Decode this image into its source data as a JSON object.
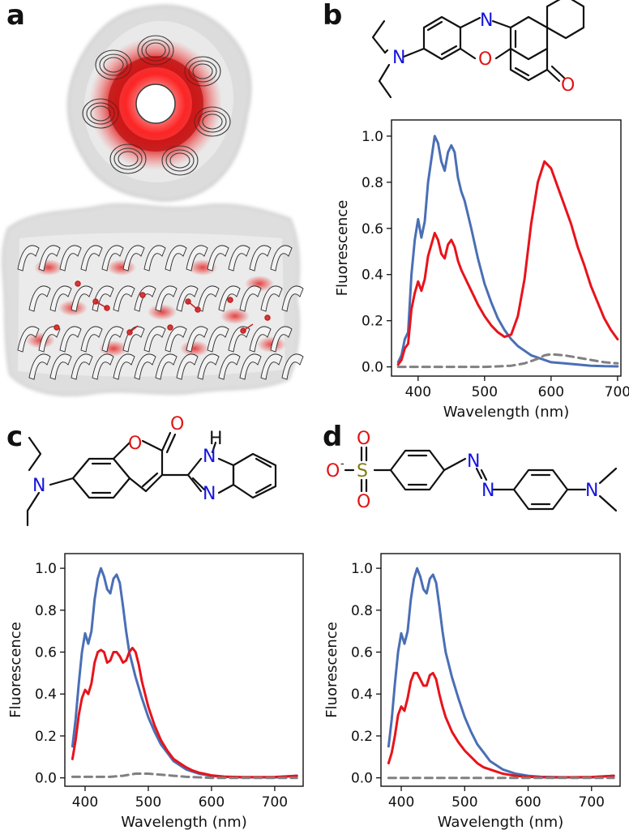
{
  "figure": {
    "panels": {
      "a": {
        "letter": "a"
      },
      "b": {
        "letter": "b"
      },
      "c": {
        "letter": "c"
      },
      "d": {
        "letter": "d"
      }
    },
    "molecule_b_atoms": {
      "N_ring": "N",
      "N_amine": "N",
      "O_ring": "O",
      "O_keto": "O"
    },
    "molecule_c_atoms": {
      "O_ring": "O",
      "O_keto": "O",
      "N_amine": "N",
      "NH": "N",
      "H": "H",
      "N_imid": "N"
    },
    "molecule_d_atoms": {
      "O_minus": "O",
      "minus": "-",
      "S": "S",
      "O_top": "O",
      "O_bottom": "O",
      "N1": "N",
      "N2": "N",
      "N_amine": "N"
    },
    "colors": {
      "blue": "#4a6fb5",
      "red": "#e8131b",
      "dashed": "#808080",
      "hetero_blue": "#1515e0",
      "hetero_red": "#e01515",
      "sulfur": "#7d7d12"
    }
  },
  "chart_data": [
    {
      "panel": "b",
      "type": "line",
      "xlabel": "Wavelength (nm)",
      "ylabel": "Fluorescence",
      "xlim": [
        360,
        705
      ],
      "ylim": [
        -0.04,
        1.07
      ],
      "xticks": [
        400,
        500,
        600,
        700
      ],
      "yticks": [
        0.0,
        0.2,
        0.4,
        0.6,
        0.8,
        1.0
      ],
      "xtick_labels": [
        "400",
        "500",
        "600",
        "700"
      ],
      "ytick_labels": [
        "0.0",
        "0.2",
        "0.4",
        "0.6",
        "0.8",
        "1.0"
      ],
      "series": [
        {
          "color": "blue",
          "style": "solid",
          "x": [
            370,
            375,
            380,
            385,
            390,
            395,
            400,
            405,
            410,
            415,
            420,
            425,
            430,
            435,
            440,
            445,
            450,
            455,
            460,
            465,
            470,
            480,
            490,
            500,
            510,
            520,
            530,
            540,
            550,
            560,
            570,
            580,
            590,
            600,
            620,
            640,
            660,
            680,
            700
          ],
          "y": [
            0.02,
            0.05,
            0.12,
            0.15,
            0.4,
            0.55,
            0.64,
            0.56,
            0.63,
            0.8,
            0.9,
            1.0,
            0.97,
            0.89,
            0.85,
            0.93,
            0.96,
            0.93,
            0.82,
            0.76,
            0.72,
            0.6,
            0.47,
            0.36,
            0.28,
            0.21,
            0.16,
            0.12,
            0.09,
            0.07,
            0.05,
            0.04,
            0.03,
            0.02,
            0.015,
            0.01,
            0.005,
            0.003,
            0.002
          ]
        },
        {
          "color": "red",
          "style": "solid",
          "x": [
            370,
            375,
            380,
            385,
            390,
            395,
            400,
            405,
            410,
            415,
            420,
            425,
            430,
            435,
            440,
            445,
            450,
            455,
            460,
            465,
            470,
            480,
            490,
            500,
            510,
            520,
            530,
            540,
            550,
            560,
            570,
            580,
            590,
            600,
            610,
            620,
            630,
            640,
            650,
            660,
            670,
            680,
            690,
            700
          ],
          "y": [
            0.01,
            0.03,
            0.08,
            0.1,
            0.25,
            0.32,
            0.37,
            0.33,
            0.38,
            0.48,
            0.53,
            0.58,
            0.55,
            0.49,
            0.47,
            0.53,
            0.55,
            0.52,
            0.46,
            0.42,
            0.39,
            0.33,
            0.27,
            0.22,
            0.18,
            0.15,
            0.13,
            0.14,
            0.22,
            0.38,
            0.62,
            0.8,
            0.89,
            0.86,
            0.78,
            0.7,
            0.62,
            0.52,
            0.44,
            0.35,
            0.28,
            0.21,
            0.16,
            0.12
          ]
        },
        {
          "color": "dashed",
          "style": "dashed",
          "x": [
            370,
            400,
            450,
            500,
            520,
            540,
            560,
            580,
            590,
            600,
            620,
            640,
            660,
            680,
            700
          ],
          "y": [
            0.0,
            0.0,
            0.0,
            0.0,
            0.002,
            0.005,
            0.015,
            0.035,
            0.05,
            0.055,
            0.05,
            0.04,
            0.03,
            0.02,
            0.015
          ]
        }
      ]
    },
    {
      "panel": "c",
      "type": "line",
      "xlabel": "Wavelength (nm)",
      "ylabel": "Fluorescence",
      "xlim": [
        368,
        745
      ],
      "ylim": [
        -0.04,
        1.07
      ],
      "xticks": [
        400,
        500,
        600,
        700
      ],
      "yticks": [
        0.0,
        0.2,
        0.4,
        0.6,
        0.8,
        1.0
      ],
      "xtick_labels": [
        "400",
        "500",
        "600",
        "700"
      ],
      "ytick_labels": [
        "0.0",
        "0.2",
        "0.4",
        "0.6",
        "0.8",
        "1.0"
      ],
      "series": [
        {
          "color": "blue",
          "style": "solid",
          "x": [
            380,
            385,
            390,
            395,
            400,
            405,
            410,
            415,
            420,
            425,
            430,
            435,
            440,
            445,
            450,
            455,
            460,
            465,
            470,
            480,
            490,
            500,
            510,
            520,
            530,
            540,
            550,
            560,
            570,
            580,
            600,
            620,
            650,
            700,
            735
          ],
          "y": [
            0.15,
            0.28,
            0.45,
            0.6,
            0.69,
            0.64,
            0.7,
            0.85,
            0.95,
            1.0,
            0.96,
            0.9,
            0.88,
            0.95,
            0.97,
            0.93,
            0.82,
            0.7,
            0.6,
            0.48,
            0.38,
            0.29,
            0.22,
            0.16,
            0.12,
            0.08,
            0.06,
            0.04,
            0.03,
            0.02,
            0.01,
            0.005,
            0.003,
            0.002,
            0.01
          ]
        },
        {
          "color": "red",
          "style": "solid",
          "x": [
            380,
            385,
            390,
            395,
            400,
            405,
            410,
            415,
            420,
            425,
            430,
            435,
            440,
            445,
            450,
            455,
            460,
            465,
            470,
            475,
            480,
            485,
            490,
            500,
            510,
            520,
            530,
            540,
            550,
            560,
            570,
            580,
            600,
            620,
            650,
            700,
            735
          ],
          "y": [
            0.09,
            0.18,
            0.3,
            0.38,
            0.42,
            0.4,
            0.45,
            0.55,
            0.6,
            0.61,
            0.6,
            0.55,
            0.56,
            0.6,
            0.6,
            0.58,
            0.55,
            0.56,
            0.6,
            0.62,
            0.6,
            0.54,
            0.46,
            0.34,
            0.25,
            0.18,
            0.13,
            0.09,
            0.07,
            0.05,
            0.035,
            0.025,
            0.012,
            0.006,
            0.003,
            0.004,
            0.01
          ]
        },
        {
          "color": "dashed",
          "style": "dashed",
          "x": [
            380,
            440,
            460,
            480,
            500,
            520,
            540,
            560,
            600,
            650,
            735
          ],
          "y": [
            0.005,
            0.005,
            0.01,
            0.02,
            0.02,
            0.015,
            0.01,
            0.005,
            0.0,
            0.0,
            0.0
          ]
        }
      ]
    },
    {
      "panel": "d",
      "type": "line",
      "xlabel": "Wavelength (nm)",
      "ylabel": "Fluorescence",
      "xlim": [
        368,
        745
      ],
      "ylim": [
        -0.04,
        1.07
      ],
      "xticks": [
        400,
        500,
        600,
        700
      ],
      "yticks": [
        0.0,
        0.2,
        0.4,
        0.6,
        0.8,
        1.0
      ],
      "xtick_labels": [
        "400",
        "500",
        "600",
        "700"
      ],
      "ytick_labels": [
        "0.0",
        "0.2",
        "0.4",
        "0.6",
        "0.8",
        "1.0"
      ],
      "series": [
        {
          "color": "blue",
          "style": "solid",
          "x": [
            380,
            385,
            390,
            395,
            400,
            405,
            410,
            415,
            420,
            425,
            430,
            435,
            440,
            445,
            450,
            455,
            460,
            465,
            470,
            480,
            490,
            500,
            510,
            520,
            530,
            540,
            550,
            560,
            570,
            580,
            600,
            620,
            650,
            700,
            735
          ],
          "y": [
            0.15,
            0.28,
            0.45,
            0.6,
            0.69,
            0.64,
            0.7,
            0.85,
            0.95,
            1.0,
            0.96,
            0.9,
            0.88,
            0.95,
            0.97,
            0.93,
            0.82,
            0.7,
            0.6,
            0.48,
            0.38,
            0.29,
            0.22,
            0.16,
            0.12,
            0.08,
            0.06,
            0.04,
            0.03,
            0.02,
            0.01,
            0.005,
            0.003,
            0.002,
            0.01
          ]
        },
        {
          "color": "red",
          "style": "solid",
          "x": [
            380,
            385,
            390,
            395,
            400,
            405,
            410,
            415,
            420,
            425,
            430,
            435,
            440,
            445,
            450,
            455,
            460,
            465,
            470,
            480,
            490,
            500,
            510,
            520,
            530,
            540,
            550,
            560,
            570,
            580,
            600,
            620,
            650,
            700,
            735
          ],
          "y": [
            0.07,
            0.12,
            0.2,
            0.3,
            0.34,
            0.32,
            0.38,
            0.46,
            0.5,
            0.5,
            0.47,
            0.44,
            0.44,
            0.49,
            0.5,
            0.47,
            0.4,
            0.34,
            0.29,
            0.22,
            0.17,
            0.13,
            0.1,
            0.07,
            0.05,
            0.04,
            0.03,
            0.02,
            0.015,
            0.01,
            0.005,
            0.003,
            0.002,
            0.004,
            0.01
          ]
        },
        {
          "color": "dashed",
          "style": "dashed",
          "x": [
            380,
            450,
            500,
            550,
            600,
            650,
            700,
            735
          ],
          "y": [
            0.0,
            0.0,
            0.0,
            0.0,
            0.0,
            0.0,
            0.0,
            0.0
          ]
        }
      ]
    }
  ]
}
